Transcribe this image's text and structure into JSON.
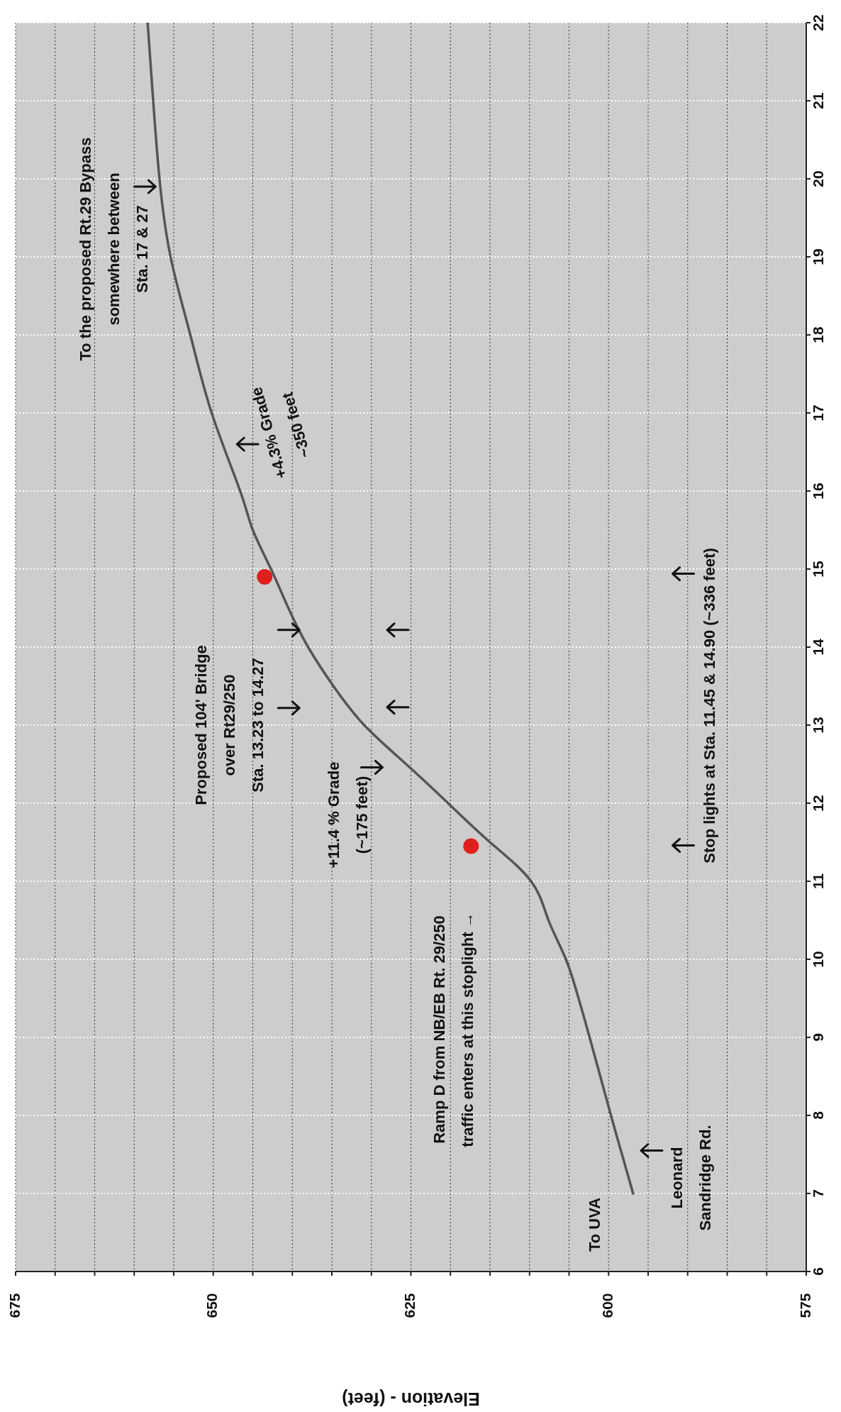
{
  "chart_data": {
    "type": "line",
    "xlabel": "Elevation - (feet)",
    "xlim": [
      675,
      575
    ],
    "xticks": [
      675,
      {
        "value": 670,
        "label": null
      },
      {
        "value": 665,
        "label": null
      },
      {
        "value": 660,
        "label": null
      },
      {
        "value": 655,
        "label": null
      },
      650,
      {
        "value": 645,
        "label": null
      },
      {
        "value": 640,
        "label": null
      },
      {
        "value": 635,
        "label": null
      },
      {
        "value": 630,
        "label": null
      },
      625,
      {
        "value": 620,
        "label": null
      },
      {
        "value": 615,
        "label": null
      },
      {
        "value": 610,
        "label": null
      },
      {
        "value": 605,
        "label": null
      },
      600,
      {
        "value": 595,
        "label": null
      },
      {
        "value": 590,
        "label": null
      },
      {
        "value": 585,
        "label": null
      },
      {
        "value": 580,
        "label": null
      },
      575
    ],
    "ylim": [
      6,
      22
    ],
    "yticks": [
      6,
      7,
      8,
      9,
      10,
      11,
      12,
      13,
      14,
      15,
      16,
      17,
      18,
      19,
      20,
      21,
      22
    ],
    "grid": true,
    "series": [
      {
        "color": "#555555",
        "x": [
          596.9,
          598.3,
          599.7,
          602.4,
          603.8,
          605.4,
          607.6,
          609.8,
          615.0,
          620.3,
          625.6,
          630.9,
          634.8,
          638.0,
          640.5,
          642.7,
          645.0,
          646.6,
          650.2,
          652.9,
          655.4,
          656.8,
          657.6,
          658.3
        ],
        "values": [
          7,
          7.5,
          8,
          9,
          9.5,
          10,
          10.5,
          11,
          11.5,
          12,
          12.5,
          13,
          13.5,
          14,
          14.5,
          15,
          15.5,
          16,
          17,
          18,
          19,
          20,
          21,
          22
        ]
      },
      {
        "type": "scatter",
        "color": "#e0201c",
        "x": [
          617.4,
          643.5
        ],
        "values": [
          11.45,
          14.9
        ]
      }
    ],
    "annotations": [
      "To the proposed Rt.29 Bypass\nsomewhere between\nSta. 17 & 27",
      "+4.3% Grade\n~350 feet",
      "Proposed 104' Bridge\nover Rt29/250\nSta. 13.23 to 14.27",
      "+11.4 % Grade\n(~175 feet)",
      "Ramp D from NB/EB Rt. 29/250\ntraffic enters at this stoplight →",
      "Stop lights at Sta. 11.45 & 14.90 (~336 feet)",
      "To UVA",
      "Leonard\nSandridge Rd."
    ]
  }
}
